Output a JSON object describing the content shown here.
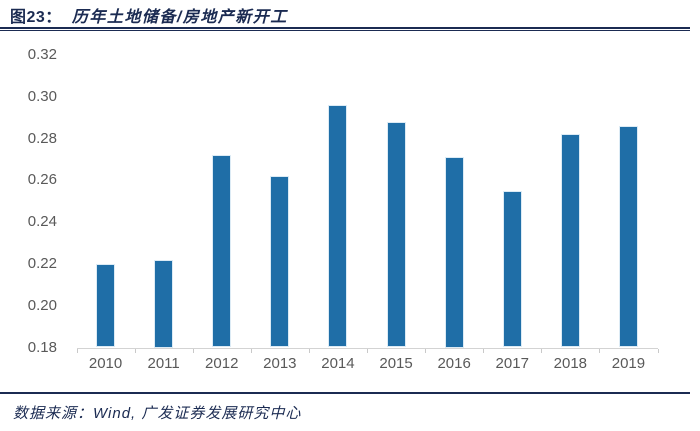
{
  "figure": {
    "label": "图23：",
    "title": "历年土地储备/房地产新开工"
  },
  "footer": {
    "source_label": "数据来源：",
    "source_text": "Wind, 广发证券发展研究中心"
  },
  "colors": {
    "bar_fill": "#1f6ea7",
    "bar_edge": "#dcebf5",
    "navy_text": "#1b2b52",
    "axis_text": "#595959",
    "axis_line": "#d3d3d3",
    "tick_mark": "#c9c9c9"
  },
  "chart_data": {
    "type": "bar",
    "title": "历年土地储备/房地产新开工",
    "categories": [
      "2010",
      "2011",
      "2012",
      "2013",
      "2014",
      "2015",
      "2016",
      "2017",
      "2018",
      "2019"
    ],
    "values": [
      0.22,
      0.222,
      0.272,
      0.262,
      0.296,
      0.288,
      0.271,
      0.255,
      0.282,
      0.286
    ],
    "xlabel": "",
    "ylabel": "",
    "ylim": [
      0.18,
      0.32
    ],
    "ytick_step": 0.02,
    "ytick_labels": [
      "0.18",
      "0.20",
      "0.22",
      "0.24",
      "0.26",
      "0.28",
      "0.30",
      "0.32"
    ],
    "grid": false,
    "legend": "none",
    "bar_color": "#1f6ea7"
  }
}
